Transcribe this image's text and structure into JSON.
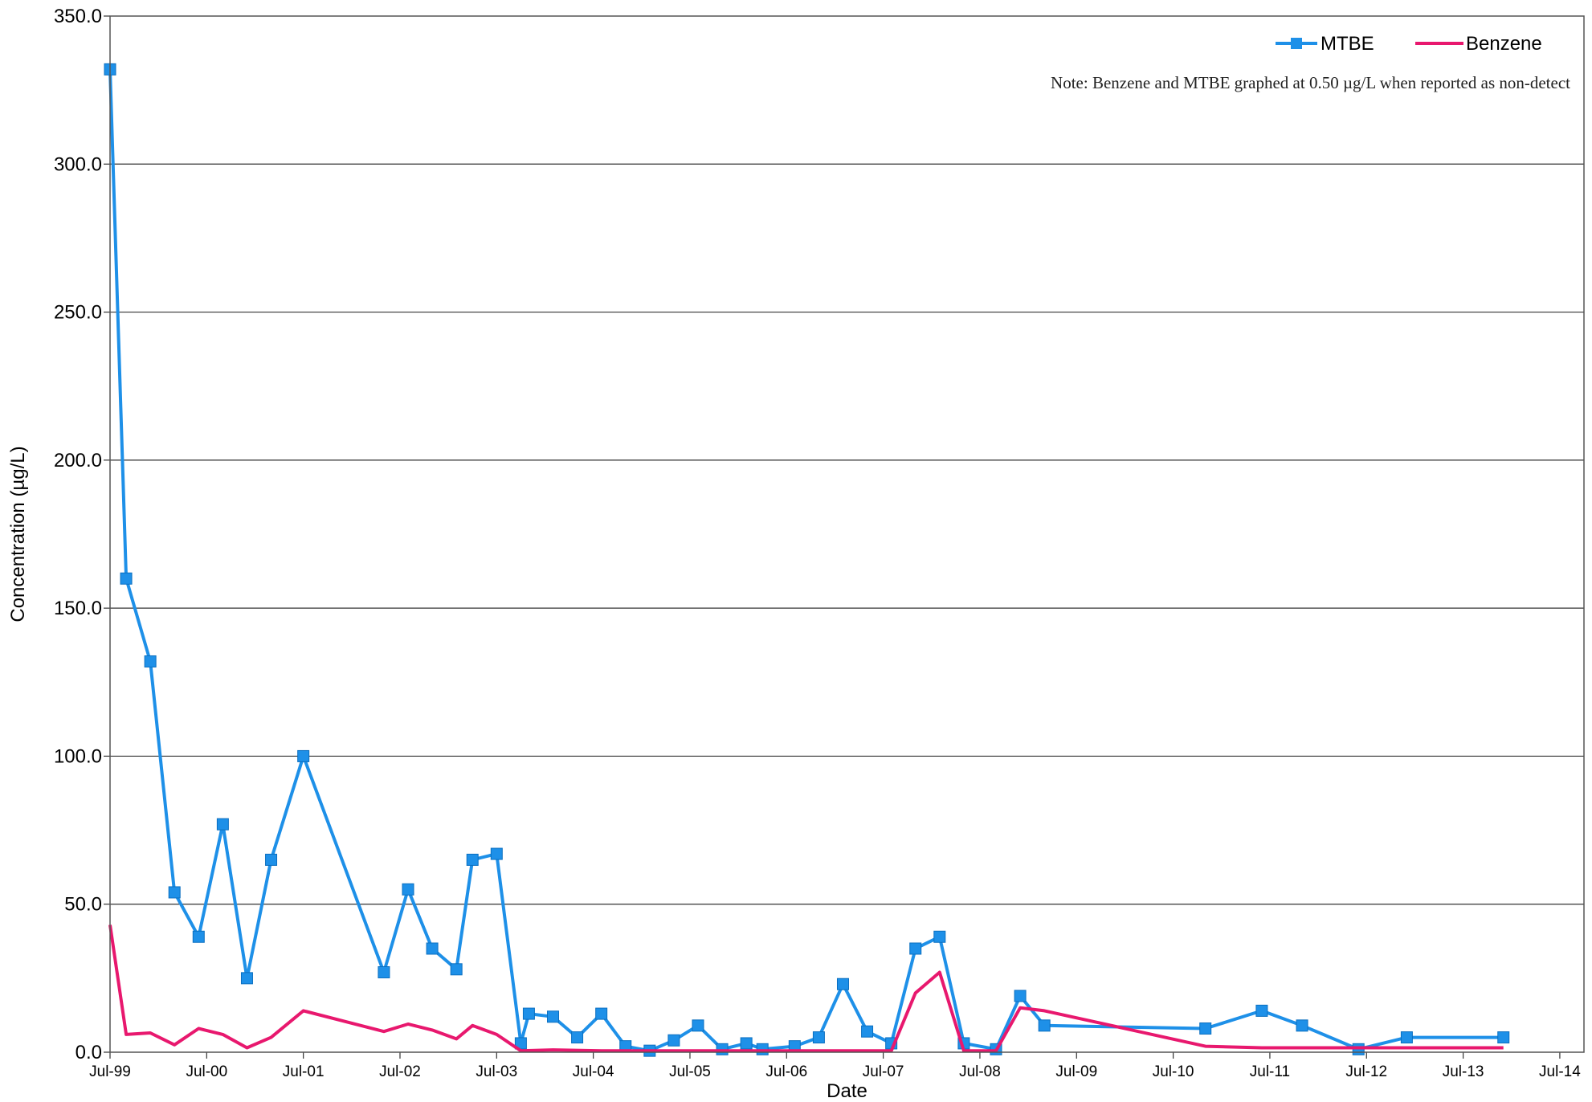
{
  "chart_data": {
    "type": "line",
    "note": "Note: Benzene  and MTBE graphed at 0.50 µg/L when reported as non-detect",
    "xlabel": "Date",
    "ylabel": "Concentration (µg/L)",
    "ylim": [
      0,
      350
    ],
    "yticks": [
      "0.0",
      "50.0",
      "100.0",
      "150.0",
      "200.0",
      "250.0",
      "300.0",
      "350.0"
    ],
    "yticks_values": [
      0,
      50,
      100,
      150,
      200,
      250,
      300,
      350
    ],
    "xlim": [
      "1999-07",
      "2014-10"
    ],
    "xticks": [
      "Jul-99",
      "Jul-00",
      "Jul-01",
      "Jul-02",
      "Jul-03",
      "Jul-04",
      "Jul-05",
      "Jul-06",
      "Jul-07",
      "Jul-08",
      "Jul-09",
      "Jul-10",
      "Jul-11",
      "Jul-12",
      "Jul-13",
      "Jul-14"
    ],
    "xticks_values": [
      "1999-07",
      "2000-07",
      "2001-07",
      "2002-07",
      "2003-07",
      "2004-07",
      "2005-07",
      "2006-07",
      "2007-07",
      "2008-07",
      "2009-07",
      "2010-07",
      "2011-07",
      "2012-07",
      "2013-07",
      "2014-07"
    ],
    "grid": "horizontal",
    "legend": "top-right",
    "series": [
      {
        "name": "MTBE",
        "color": "#1E90E8",
        "marker": "square",
        "x": [
          "1999-07",
          "1999-09",
          "1999-12",
          "2000-03",
          "2000-06",
          "2000-09",
          "2000-12",
          "2001-03",
          "2001-07",
          "2002-05",
          "2002-08",
          "2002-11",
          "2003-02",
          "2003-04",
          "2003-07",
          "2003-10",
          "2003-11",
          "2004-02",
          "2004-05",
          "2004-08",
          "2004-11",
          "2005-02",
          "2005-05",
          "2005-08",
          "2005-11",
          "2006-02",
          "2006-04",
          "2006-08",
          "2006-11",
          "2007-02",
          "2007-05",
          "2007-08",
          "2007-11",
          "2008-02",
          "2008-05",
          "2008-09",
          "2008-12",
          "2009-03",
          "2010-11",
          "2011-06",
          "2011-11",
          "2012-06",
          "2012-12",
          "2013-12"
        ],
        "values": [
          332,
          160,
          132,
          54,
          39,
          77,
          25,
          65,
          100,
          27,
          55,
          35,
          28,
          65,
          67,
          3,
          13,
          12,
          5,
          13,
          2,
          0.5,
          4,
          9,
          1,
          3,
          1,
          2,
          5,
          23,
          7,
          3,
          35,
          39,
          3,
          1,
          19,
          9,
          8,
          14,
          9,
          1,
          5,
          5
        ]
      },
      {
        "name": "Benzene",
        "color": "#E8186E",
        "marker": "none",
        "x": [
          "1999-07",
          "1999-09",
          "1999-12",
          "2000-03",
          "2000-06",
          "2000-09",
          "2000-12",
          "2001-03",
          "2001-07",
          "2002-05",
          "2002-08",
          "2002-11",
          "2003-02",
          "2003-04",
          "2003-07",
          "2003-10",
          "2004-02",
          "2004-08",
          "2005-02",
          "2005-08",
          "2006-02",
          "2006-08",
          "2007-02",
          "2007-08",
          "2007-11",
          "2008-02",
          "2008-05",
          "2008-09",
          "2008-12",
          "2009-03",
          "2010-11",
          "2011-06",
          "2012-06",
          "2013-12"
        ],
        "values": [
          43,
          6,
          6.5,
          2.5,
          8,
          6,
          1.5,
          5,
          14,
          7,
          9.5,
          7.5,
          4.5,
          9,
          6,
          0.5,
          0.8,
          0.5,
          0.5,
          0.5,
          0.5,
          0.5,
          0.5,
          0.5,
          20,
          27,
          0.5,
          0.5,
          15,
          14,
          2,
          1.5,
          1.5,
          1.5
        ]
      }
    ]
  }
}
